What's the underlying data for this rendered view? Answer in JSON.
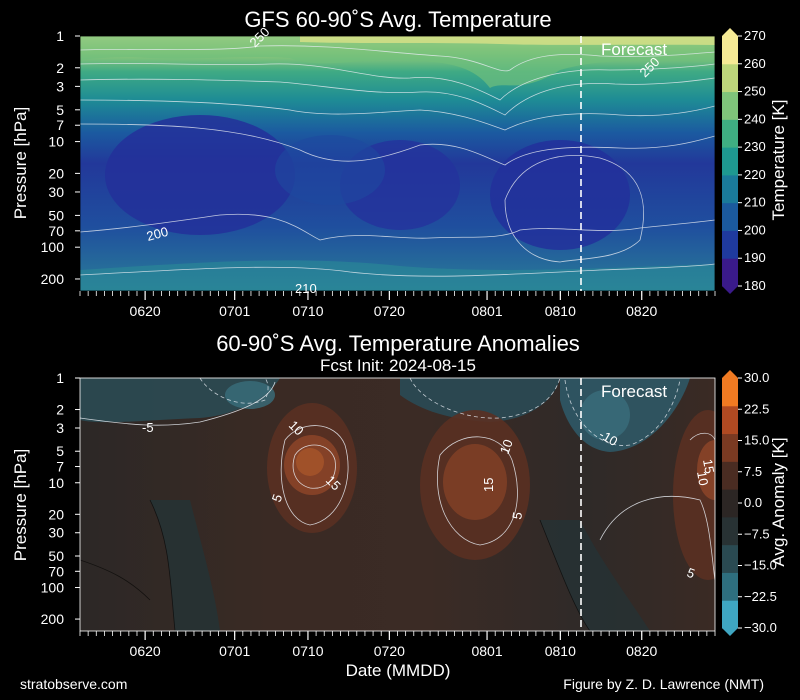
{
  "chart_data": [
    {
      "type": "heatmap",
      "title": "GFS 60-90˚S Avg. Temperature",
      "ylabel": "Pressure [hPa]",
      "y_scale": "log",
      "y_reversed": true,
      "yticks": [
        "1",
        "2",
        "3",
        "5",
        "7",
        "10",
        "20",
        "30",
        "50",
        "70",
        "100",
        "200"
      ],
      "xticks": [
        "0620",
        "0701",
        "0710",
        "0720",
        "0801",
        "0810",
        "0820"
      ],
      "colorbar": {
        "label": "Temperature [K]",
        "min": 180,
        "max": 270,
        "ticks": [
          "180",
          "190",
          "200",
          "210",
          "220",
          "230",
          "240",
          "250",
          "260",
          "270"
        ],
        "colors": [
          "#3a1a8a",
          "#1f3a9e",
          "#1b5a9e",
          "#1a7a9a",
          "#1e9890",
          "#3fae82",
          "#7fc47a",
          "#bcd67a",
          "#f6ea95"
        ]
      },
      "annotation": "Forecast",
      "contour_labels": [
        "200",
        "250",
        "250",
        "210"
      ]
    },
    {
      "type": "heatmap",
      "title": "60-90˚S Avg. Temperature Anomalies",
      "subtitle": "Fcst Init: 2024-08-15",
      "xlabel": "Date (MMDD)",
      "ylabel": "Pressure [hPa]",
      "y_scale": "log",
      "y_reversed": true,
      "yticks": [
        "1",
        "2",
        "3",
        "5",
        "7",
        "10",
        "20",
        "30",
        "50",
        "70",
        "100",
        "200"
      ],
      "xticks": [
        "0620",
        "0701",
        "0710",
        "0720",
        "0801",
        "0810",
        "0820"
      ],
      "colorbar": {
        "label": "Avg. Anomaly [K]",
        "min": -30,
        "max": 30,
        "ticks": [
          "−30.0",
          "−22.5",
          "−15.0",
          "−7.5",
          "0.0",
          "7.5",
          "15.0",
          "22.5",
          "30.0"
        ],
        "colors": [
          "#3fa6c2",
          "#2e6f7f",
          "#2a4a52",
          "#283234",
          "#2c2624",
          "#4a2c22",
          "#7a3a22",
          "#b04a22",
          "#f07a22"
        ]
      },
      "annotation": "Forecast",
      "contour_labels": [
        "-5",
        "-10",
        "10",
        "15",
        "5",
        "15",
        "10",
        "5",
        "15",
        "10",
        "5"
      ]
    }
  ],
  "footer": {
    "left": "stratobserve.com",
    "right": "Figure by Z. D. Lawrence (NMT)"
  }
}
